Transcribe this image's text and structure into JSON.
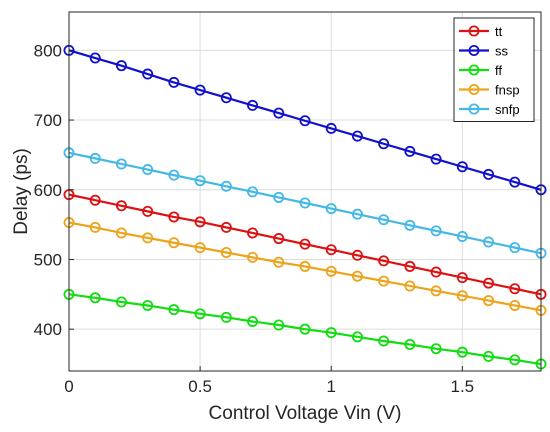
{
  "chart_data": {
    "type": "line",
    "title": "",
    "xlabel": "Control Voltage Vin (V)",
    "ylabel": "Delay (ps)",
    "xlim": [
      0,
      1.8
    ],
    "ylim": [
      340,
      855
    ],
    "xticks": [
      0,
      0.5,
      1,
      1.5
    ],
    "xtick_labels": [
      "0",
      "0.5",
      "1",
      "1.5"
    ],
    "yticks": [
      400,
      500,
      600,
      700,
      800
    ],
    "ytick_labels": [
      "400",
      "500",
      "600",
      "700",
      "800"
    ],
    "grid": true,
    "legend_position": "top-right",
    "marker": "circle-open",
    "x": [
      0,
      0.1,
      0.2,
      0.3,
      0.4,
      0.5,
      0.6,
      0.7,
      0.8,
      0.9,
      1.0,
      1.1,
      1.2,
      1.3,
      1.4,
      1.5,
      1.6,
      1.7,
      1.8
    ],
    "series": [
      {
        "name": "tt",
        "color": "#dd1111",
        "values": [
          593,
          585,
          577,
          569,
          561,
          554,
          546,
          538,
          530,
          522,
          514,
          506,
          498,
          490,
          482,
          474,
          466,
          458,
          450
        ]
      },
      {
        "name": "ss",
        "color": "#1111cc",
        "values": [
          800,
          789,
          778,
          766,
          754,
          743,
          732,
          721,
          710,
          699,
          688,
          677,
          666,
          655,
          644,
          633,
          622,
          611,
          600
        ]
      },
      {
        "name": "ff",
        "color": "#11dd11",
        "values": [
          450,
          445,
          439,
          434,
          428,
          422,
          417,
          411,
          406,
          400,
          395,
          389,
          383,
          378,
          372,
          367,
          361,
          356,
          350
        ]
      },
      {
        "name": "fnsp",
        "color": "#eda31a",
        "values": [
          553,
          546,
          538,
          531,
          524,
          517,
          510,
          503,
          496,
          490,
          483,
          476,
          469,
          462,
          455,
          448,
          441,
          434,
          427
        ]
      },
      {
        "name": "snfp",
        "color": "#44b8e6",
        "values": [
          653,
          645,
          637,
          629,
          621,
          613,
          605,
          597,
          589,
          581,
          573,
          565,
          557,
          549,
          541,
          533,
          525,
          517,
          509
        ]
      }
    ]
  }
}
